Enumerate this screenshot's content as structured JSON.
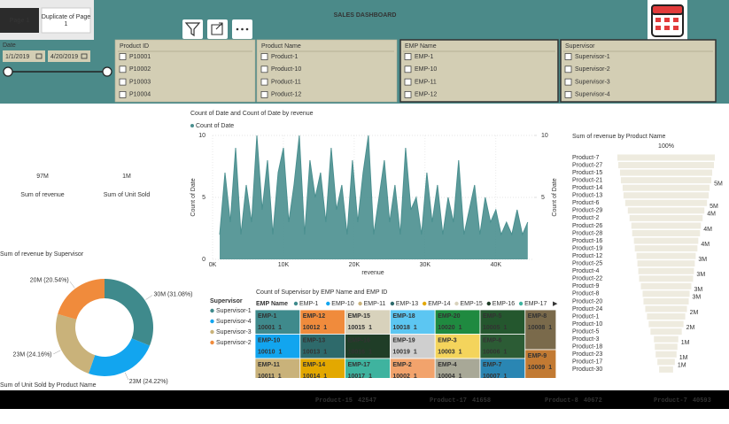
{
  "tabs": [
    "Page 1",
    "Duplicate of Page 1"
  ],
  "title": "SALES DASHBOARD",
  "slicers": {
    "date": {
      "label": "Date",
      "start": "1/1/2019",
      "end": "4/20/2019"
    },
    "lists": [
      {
        "label": "Product ID",
        "items": [
          "P10001",
          "P10002",
          "P10003",
          "P10004"
        ]
      },
      {
        "label": "Product Name",
        "items": [
          "Product-1",
          "Product-10",
          "Product-11",
          "Product-12"
        ]
      },
      {
        "label": "EMP Name",
        "items": [
          "EMP-1",
          "EMP-10",
          "EMP-11",
          "EMP-12"
        ]
      },
      {
        "label": "Supervisor",
        "items": [
          "Supervisor-1",
          "Supervisor-2",
          "Supervisor-3",
          "Supervisor-4"
        ]
      }
    ]
  },
  "cards": [
    {
      "value": "97M",
      "label": "Sum of revenue"
    },
    {
      "value": "1M",
      "label": "Sum of Unit Sold"
    }
  ],
  "chart_data": [
    {
      "type": "area",
      "title": "Count of Date and Count of Date by revenue",
      "x": [
        1000,
        1750,
        2500,
        3250,
        4000,
        4750,
        5500,
        6250,
        7000,
        7750,
        8500,
        9250,
        10000,
        10750,
        11500,
        12250,
        13000,
        13750,
        14500,
        15250,
        16000,
        16750,
        17500,
        18250,
        19000,
        19750,
        20500,
        21250,
        22000,
        22750,
        23500,
        24250,
        25000,
        25750,
        26500,
        27250,
        28000,
        28750,
        29500,
        30250,
        31000,
        31750,
        32500,
        33250,
        34000,
        34750,
        35500,
        36250,
        37000,
        37750,
        38500,
        39250,
        40000,
        40750,
        41500,
        42250,
        43000,
        43750,
        44500
      ],
      "series": [
        {
          "name": "Count of Date",
          "color": "#4a8f8f",
          "values": [
            2,
            7,
            3,
            9,
            2,
            6,
            3,
            10,
            4,
            8,
            2,
            7,
            9,
            3,
            6,
            10,
            2,
            8,
            5,
            7,
            3,
            9,
            4,
            6,
            2,
            8,
            3,
            7,
            10,
            2,
            5,
            8,
            3,
            6,
            2,
            9,
            4,
            5,
            2,
            7,
            3,
            6,
            2,
            5,
            3,
            8,
            2,
            4,
            6,
            2,
            5,
            3,
            4,
            2,
            3,
            2,
            4,
            2,
            3
          ]
        }
      ],
      "xlabel": "revenue",
      "ylabel": "Count of Date",
      "y2label": "Count of Date",
      "xlim": [
        0,
        45400
      ],
      "ylim": [
        0,
        10
      ],
      "y2lim": [
        0,
        10
      ],
      "xticks": [
        {
          "value": 0,
          "label": "0K"
        },
        {
          "value": 10000,
          "label": "10K"
        },
        {
          "value": 20000,
          "label": "20K"
        },
        {
          "value": 30000,
          "label": "30K"
        },
        {
          "value": 40000,
          "label": "40K"
        }
      ],
      "yticks": [
        0,
        5,
        10
      ],
      "y2ticks": [
        5,
        10
      ],
      "grid": true
    },
    {
      "type": "funnel",
      "title": "Sum of revenue by Product Name",
      "top_label": "100%",
      "color": "#eeebdf",
      "categories": [
        "Product-7",
        "Product-27",
        "Product-15",
        "Product-21",
        "Product-14",
        "Product-13",
        "Product-6",
        "Product-29",
        "Product-2",
        "Product-26",
        "Product-28",
        "Product-16",
        "Product-19",
        "Product-12",
        "Product-25",
        "Product-4",
        "Product-22",
        "Product-9",
        "Product-8",
        "Product-20",
        "Product-24",
        "Product-1",
        "Product-10",
        "Product-5",
        "Product-3",
        "Product-18",
        "Product-23",
        "Product-17",
        "Product-30"
      ],
      "values": [
        5600000,
        5500000,
        5300000,
        5200000,
        5000000,
        4900000,
        4700000,
        4400000,
        4200000,
        4000000,
        3900000,
        3700000,
        3600000,
        3400000,
        3300000,
        3200000,
        3100000,
        2900000,
        2700000,
        2600000,
        2400000,
        2200000,
        2000000,
        1800000,
        1400000,
        1300000,
        1200000,
        1000000,
        800000
      ],
      "value_labels": [
        null,
        null,
        null,
        "5M",
        null,
        null,
        "5M",
        "4M",
        null,
        "4M",
        null,
        "4M",
        null,
        "3M",
        null,
        "3M",
        null,
        "3M",
        "3M",
        null,
        "2M",
        null,
        "2M",
        null,
        "1M",
        null,
        "1M",
        "1M",
        null
      ]
    },
    {
      "type": "pie",
      "title": "Sum of revenue by Supervisor",
      "legend_title": "Supervisor",
      "categories": [
        "Supervisor-1",
        "Supervisor-4",
        "Supervisor-3",
        "Supervisor-2"
      ],
      "values": [
        30150000,
        23490000,
        23430000,
        19920000
      ],
      "value_labels": [
        "30M (31.08%)",
        "23M (24.22%)",
        "23M (24.16%)",
        "20M (20.54%)"
      ],
      "colors": [
        "#3f8a8c",
        "#12a5ef",
        "#c9b27a",
        "#f08b3c"
      ]
    },
    {
      "type": "treemap",
      "title": "Count of Supervisor by EMP Name and EMP ID",
      "legend_title": "EMP Name",
      "legend": [
        "EMP-1",
        "EMP-10",
        "EMP-11",
        "EMP-13",
        "EMP-14",
        "EMP-15",
        "EMP-16",
        "EMP-17"
      ],
      "cells": [
        {
          "name": "EMP-1",
          "id": "10001",
          "value": 1,
          "color": "#3f8a8c"
        },
        {
          "name": "EMP-12",
          "id": "10012",
          "value": 1,
          "color": "#f08b3c"
        },
        {
          "name": "EMP-15",
          "id": "10015",
          "value": 1,
          "color": "#d8d2bc"
        },
        {
          "name": "EMP-18",
          "id": "10018",
          "value": 1,
          "color": "#5cc6f2"
        },
        {
          "name": "EMP-20",
          "id": "10020",
          "value": 1,
          "color": "#1f8a40"
        },
        {
          "name": "EMP-5",
          "id": "10005",
          "value": 1,
          "color": "#24572e"
        },
        {
          "name": "EMP-10",
          "id": "10010",
          "value": 1,
          "color": "#12a5ef"
        },
        {
          "name": "EMP-13",
          "id": "10013",
          "value": 1,
          "color": "#2e6a6b"
        },
        {
          "name": "EMP-16",
          "id": "10016",
          "value": 1,
          "color": "#1f3d27"
        },
        {
          "name": "EMP-19",
          "id": "10019",
          "value": 1,
          "color": "#cfcfcf"
        },
        {
          "name": "EMP-3",
          "id": "10003",
          "value": 1,
          "color": "#f4d45c"
        },
        {
          "name": "EMP-6",
          "id": "10006",
          "value": 1,
          "color": "#2c5c35"
        },
        {
          "name": "EMP-11",
          "id": "10011",
          "value": 1,
          "color": "#c9b27a"
        },
        {
          "name": "EMP-14",
          "id": "10014",
          "value": 1,
          "color": "#e3a800"
        },
        {
          "name": "EMP-17",
          "id": "10017",
          "value": 1,
          "color": "#3fb39f"
        },
        {
          "name": "EMP-2",
          "id": "10002",
          "value": 1,
          "color": "#f2a36c"
        },
        {
          "name": "EMP-4",
          "id": "10004",
          "value": 1,
          "color": "#a8a897"
        },
        {
          "name": "EMP-7",
          "id": "10007",
          "value": 1,
          "color": "#2a86b3"
        },
        {
          "name": "EMP-8",
          "id": "10008",
          "value": 1,
          "color": "#7a6a4b"
        },
        {
          "name": "EMP-9",
          "id": "10009",
          "value": 1,
          "color": "#c27a33"
        }
      ]
    },
    {
      "type": "bar",
      "title": "Sum of Unit Sold by Product Name"
    }
  ],
  "ticker": [
    {
      "name": "Product-15",
      "value": 42547
    },
    {
      "name": "Product-17",
      "value": 41658
    },
    {
      "name": "Product-8",
      "value": 40672
    },
    {
      "name": "Product-7",
      "value": 40593
    }
  ]
}
